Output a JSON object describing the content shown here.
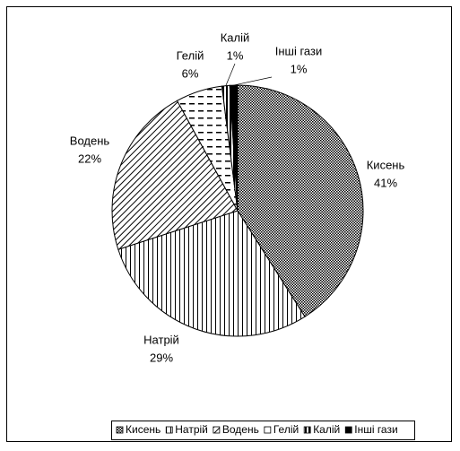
{
  "chart_data": {
    "type": "pie",
    "categories": [
      "Кисень",
      "Натрій",
      "Водень",
      "Гелій",
      "Калій",
      "Інші гази"
    ],
    "values": [
      41,
      29,
      22,
      6,
      1,
      1
    ],
    "value_labels": [
      "41%",
      "29%",
      "22%",
      "6%",
      "1%",
      "1%"
    ],
    "legend": "bottom"
  }
}
